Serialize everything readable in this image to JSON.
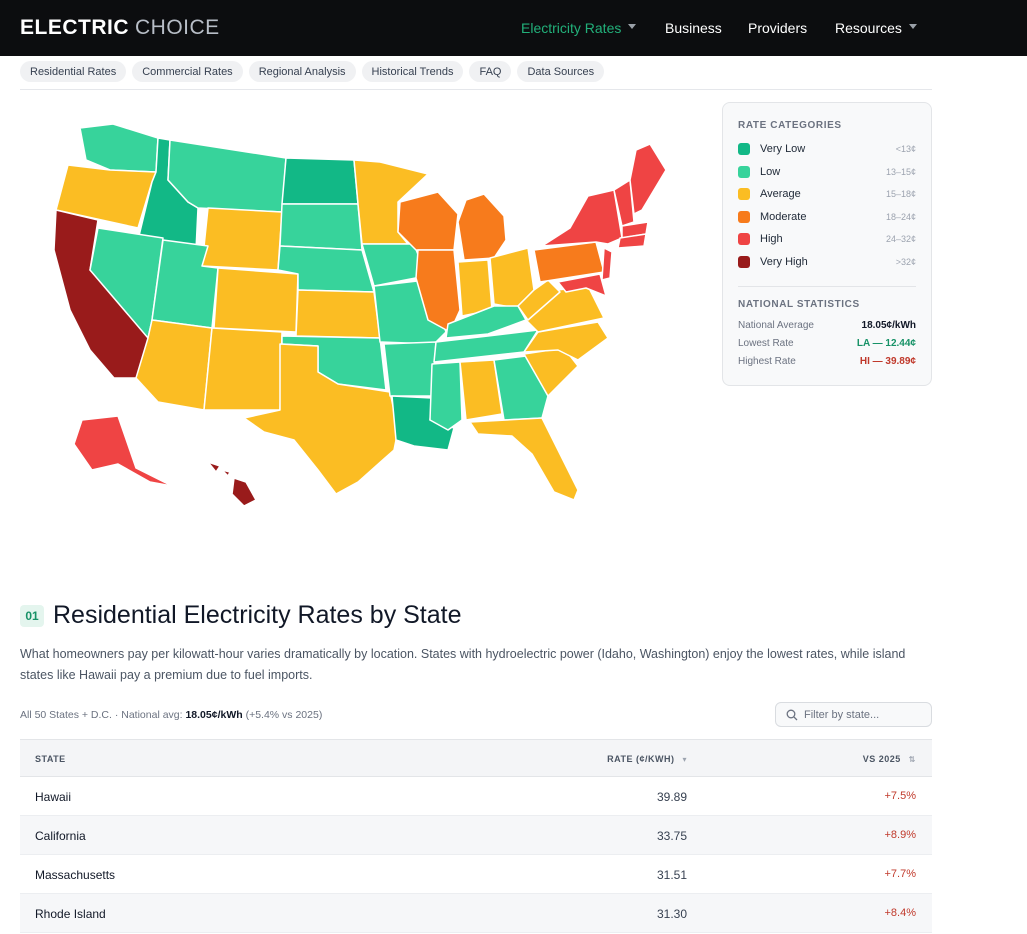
{
  "brand": {
    "part1": "ELECTRIC",
    "part2": "CHOICE"
  },
  "nav": [
    {
      "label": "Electricity Rates",
      "active": true,
      "dropdown": true
    },
    {
      "label": "Business"
    },
    {
      "label": "Providers"
    },
    {
      "label": "Resources",
      "dropdown": true
    }
  ],
  "subtabs": [
    "Residential Rates",
    "Commercial Rates",
    "Regional Analysis",
    "Historical Trends",
    "FAQ",
    "Data Sources"
  ],
  "colors": {
    "very_low": "#12b886",
    "low": "#37d39b",
    "average": "#fbbd23",
    "moderate": "#f77b1c",
    "high": "#ef4444",
    "very_high": "#991b1b",
    "accent": "#22b07a"
  },
  "legend": {
    "title": "RATE CATEGORIES",
    "items": [
      {
        "label": "Very Low",
        "range": "<13¢",
        "color": "#12b886"
      },
      {
        "label": "Low",
        "range": "13–15¢",
        "color": "#37d39b"
      },
      {
        "label": "Average",
        "range": "15–18¢",
        "color": "#fbbd23"
      },
      {
        "label": "Moderate",
        "range": "18–24¢",
        "color": "#f77b1c"
      },
      {
        "label": "High",
        "range": "24–32¢",
        "color": "#ef4444"
      },
      {
        "label": "Very High",
        "range": ">32¢",
        "color": "#991b1b"
      }
    ],
    "stats_title": "NATIONAL STATISTICS",
    "stats": [
      {
        "label": "National Average",
        "value": "18.05¢/kWh",
        "color": "#111827"
      },
      {
        "label": "Lowest Rate",
        "value": "LA — 12.44¢",
        "color": "#179267"
      },
      {
        "label": "Highest Rate",
        "value": "HI — 39.89¢",
        "color": "#c0392b"
      }
    ]
  },
  "section": {
    "number": "01",
    "title": "Residential Electricity Rates by State",
    "description": "What homeowners pay per kilowatt-hour varies dramatically by location. States with hydroelectric power (Idaho, Washington) enjoy the lowest rates, while island states like Hawaii pay a premium due to fuel imports.",
    "summary_prefix": "All 50 States + D.C. · National avg: ",
    "summary_value": "18.05¢/kWh",
    "summary_suffix": " (+5.4% vs 2025)",
    "filter_placeholder": "Filter by state..."
  },
  "table": {
    "headers": {
      "state": "STATE",
      "rate": "RATE (¢/KWH)",
      "vs": "VS 2025"
    },
    "rows": [
      {
        "state": "Hawaii",
        "rate": "39.89",
        "change": "+7.5%"
      },
      {
        "state": "California",
        "rate": "33.75",
        "change": "+8.9%"
      },
      {
        "state": "Massachusetts",
        "rate": "31.51",
        "change": "+7.7%"
      },
      {
        "state": "Rhode Island",
        "rate": "31.30",
        "change": "+8.4%"
      }
    ]
  }
}
